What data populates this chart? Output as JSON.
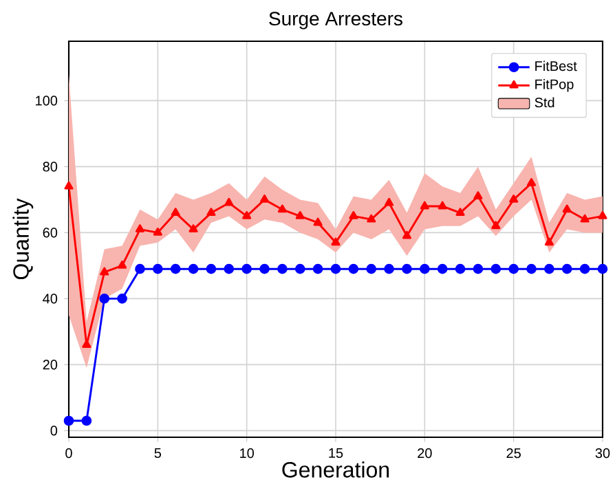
{
  "chart_data": {
    "type": "line",
    "title": "Surge Arresters",
    "xlabel": "Generation",
    "ylabel": "Quantity",
    "x": [
      0,
      1,
      2,
      3,
      4,
      5,
      6,
      7,
      8,
      9,
      10,
      11,
      12,
      13,
      14,
      15,
      16,
      17,
      18,
      19,
      20,
      21,
      22,
      23,
      24,
      25,
      26,
      27,
      28,
      29,
      30
    ],
    "series": [
      {
        "name": "FitBest",
        "color": "#0000ff",
        "marker": "circle",
        "values": [
          3,
          3,
          40,
          40,
          49,
          49,
          49,
          49,
          49,
          49,
          49,
          49,
          49,
          49,
          49,
          49,
          49,
          49,
          49,
          49,
          49,
          49,
          49,
          49,
          49,
          49,
          49,
          49,
          49,
          49,
          49
        ]
      },
      {
        "name": "FitPop",
        "color": "#ff0000",
        "marker": "triangle",
        "values": [
          74,
          26,
          48,
          50,
          61,
          60,
          66,
          61,
          66,
          69,
          65,
          70,
          67,
          65,
          63,
          57,
          65,
          64,
          69,
          59,
          68,
          68,
          66,
          71,
          62,
          70,
          75,
          57,
          67,
          64,
          65
        ]
      },
      {
        "name": "Std",
        "type": "area",
        "color": "#f8b4ae",
        "values": [
          null,
          null,
          null,
          null,
          null,
          null,
          null,
          null,
          null,
          null,
          null,
          null,
          null,
          null,
          null,
          null,
          null,
          null,
          null,
          null,
          null,
          null,
          null,
          null,
          null,
          null,
          null,
          null,
          null,
          null,
          null
        ],
        "lower": [
          35,
          19,
          40,
          43,
          56,
          57,
          61,
          54,
          63,
          65,
          61,
          64,
          63,
          60,
          58,
          54,
          60,
          58,
          61,
          53,
          61,
          62,
          62,
          65,
          59,
          65,
          70,
          54,
          61,
          60,
          60
        ],
        "upper": [
          108,
          33,
          55,
          56,
          67,
          64,
          72,
          70,
          72,
          75,
          70,
          77,
          73,
          70,
          69,
          61,
          71,
          70,
          76,
          66,
          78,
          74,
          72,
          80,
          67,
          75,
          83,
          63,
          72,
          70,
          71
        ]
      }
    ],
    "xlim": [
      0,
      30
    ],
    "ylim": [
      -2,
      118
    ],
    "xticks": [
      0,
      5,
      10,
      15,
      20,
      25,
      30
    ],
    "yticks": [
      0,
      20,
      40,
      60,
      80,
      100
    ],
    "grid": true,
    "legend": "top right",
    "line_style": "solid"
  }
}
